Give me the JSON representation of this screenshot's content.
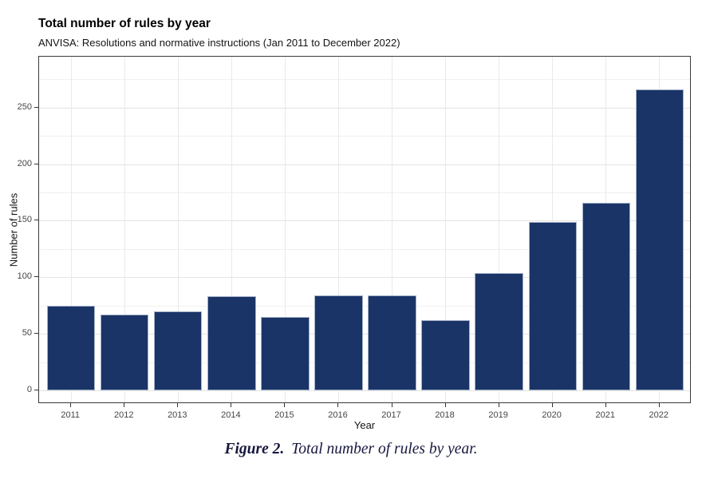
{
  "figure": {
    "caption_label": "Figure 2.",
    "caption_text": "Total number of rules by year."
  },
  "chart_data": {
    "type": "bar",
    "title": "Total number of rules by year",
    "subtitle": "ANVISA: Resolutions and normative instructions (Jan 2011 to December 2022)",
    "xlabel": "Year",
    "ylabel": "Number of rules",
    "categories": [
      "2011",
      "2012",
      "2013",
      "2014",
      "2015",
      "2016",
      "2017",
      "2018",
      "2019",
      "2020",
      "2021",
      "2022"
    ],
    "values": [
      75,
      67,
      70,
      83,
      65,
      84,
      84,
      62,
      104,
      149,
      166,
      266
    ],
    "y_ticks": [
      0,
      50,
      100,
      150,
      200,
      250
    ],
    "y_minor_ticks": [
      25,
      75,
      125,
      175,
      225,
      275
    ],
    "ylim": [
      -12,
      295
    ],
    "grid": "major and minor horizontal, major vertical at categories",
    "legend": "none",
    "colors": {
      "bar_fill": "#1a3467",
      "bar_border": "#a5b3c9",
      "panel_border": "#3a3a3a",
      "grid_major": "#e4e4e4",
      "grid_minor": "#f0f0f0",
      "axis_text": "#454545",
      "caption_text": "#17173f"
    }
  }
}
